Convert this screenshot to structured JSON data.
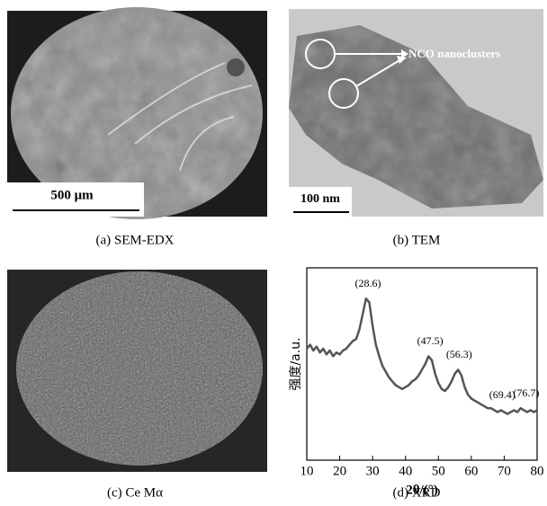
{
  "panels": [
    {
      "caption": "(a) SEM-EDX",
      "scale_bar": "500 μm"
    },
    {
      "caption": "(b) TEM",
      "annotation": "NCO nanoclusters",
      "scale_bar": "100 nm"
    },
    {
      "caption": "(c) Ce Mα"
    },
    {
      "caption": "(d) XRD"
    }
  ],
  "chart_data": {
    "type": "line",
    "x_label": "2θ/(°)",
    "y_label": "强度/a.u.",
    "color": "#555555",
    "x": [
      10,
      11,
      12,
      13,
      14,
      15,
      16,
      17,
      18,
      19,
      20,
      21,
      22,
      23,
      24,
      25,
      26,
      27,
      28,
      29,
      30,
      31,
      32,
      33,
      34,
      35,
      36,
      37,
      38,
      39,
      40,
      41,
      42,
      43,
      44,
      45,
      46,
      47,
      48,
      49,
      50,
      51,
      52,
      53,
      54,
      55,
      56,
      57,
      58,
      59,
      60,
      61,
      62,
      63,
      64,
      65,
      66,
      67,
      68,
      69,
      70,
      71,
      72,
      73,
      74,
      75,
      76,
      77,
      78,
      79,
      80
    ],
    "values": [
      58,
      60,
      57,
      59,
      56,
      58,
      55,
      57,
      54,
      56,
      55,
      57,
      58,
      60,
      62,
      63,
      68,
      76,
      84,
      82,
      70,
      60,
      54,
      49,
      46,
      43,
      41,
      39,
      38,
      37,
      38,
      39,
      41,
      42,
      44,
      47,
      50,
      54,
      52,
      45,
      40,
      37,
      36,
      38,
      41,
      45,
      47,
      44,
      38,
      34,
      32,
      31,
      30,
      29,
      28,
      27,
      27,
      26,
      25,
      26,
      25,
      24,
      25,
      26,
      25,
      27,
      26,
      25,
      26,
      25,
      26
    ],
    "xlim": [
      10,
      80
    ],
    "xticks": [
      10,
      20,
      30,
      40,
      50,
      60,
      70,
      80
    ],
    "ylim": [
      0,
      100
    ],
    "annotations": [
      {
        "text": "(28.6)",
        "x": 28.6
      },
      {
        "text": "(47.5)",
        "x": 47.5
      },
      {
        "text": "(56.3)",
        "x": 56.3
      },
      {
        "text": "(69.4)",
        "x": 69.4
      },
      {
        "text": "(76.7)",
        "x": 76.7
      }
    ]
  }
}
